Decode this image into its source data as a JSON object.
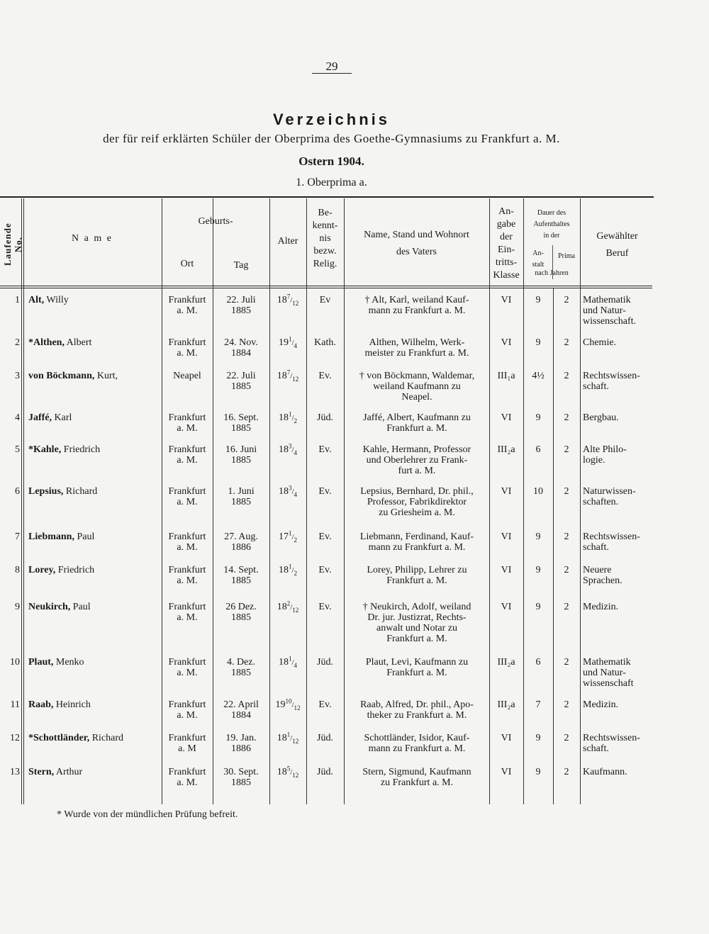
{
  "page_number": "29",
  "title": "Verzeichnis",
  "subtitle": "der für reif erklärten Schüler der Oberprima des Goethe-Gymnasiums zu Frankfurt a. M.",
  "term": "Ostern 1904.",
  "class_heading": "1. Oberprima a.",
  "headers": {
    "no": "Laufende No.",
    "name": "N a m e",
    "geburts": "Geburts-",
    "ort": "Ort",
    "tag": "Tag",
    "alter": "Alter",
    "relig_1": "Be-",
    "relig_2": "kennt-",
    "relig_3": "nis",
    "relig_4": "bezw.",
    "relig_5": "Relig.",
    "vater_1": "Name, Stand und Wohnort",
    "vater_2": "des Vaters",
    "klasse_1": "An-",
    "klasse_2": "gabe",
    "klasse_3": "der",
    "klasse_4": "Ein-",
    "klasse_5": "tritts-",
    "klasse_6": "Klasse",
    "dauer_1": "Dauer des",
    "dauer_2": "Aufenthaltes",
    "dauer_3": "in der",
    "anstalt_1": "An-",
    "anstalt_2": "stalt",
    "prima": "Prima",
    "nach_jahren": "nach Jahren",
    "beruf_1": "Gewählter",
    "beruf_2": "Beruf"
  },
  "rows": [
    {
      "no": "1",
      "surname": "Alt,",
      "first": "Willy",
      "ort": [
        "Frankfurt",
        "a. M."
      ],
      "tag": [
        "22. Juli",
        "1885"
      ],
      "alter": {
        "whole": "18",
        "num": "7",
        "den": "12"
      },
      "relig": "Ev",
      "vater": [
        "† Alt, Karl, weiland Kauf-",
        "mann zu Frankfurt a. M."
      ],
      "klasse": "VI",
      "anstalt": "9",
      "prima": "2",
      "beruf": [
        "Mathematik",
        "und Natur-",
        "wissenschaft."
      ]
    },
    {
      "no": "2",
      "surname": "*Althen,",
      "first": "Albert",
      "ort": [
        "Frankfurt",
        "a. M."
      ],
      "tag": [
        "24. Nov.",
        "1884"
      ],
      "alter": {
        "whole": "19",
        "num": "1",
        "den": "4"
      },
      "relig": "Kath.",
      "vater": [
        "Althen, Wilhelm, Werk-",
        "meister zu Frankfurt a. M."
      ],
      "klasse": "VI",
      "anstalt": "9",
      "prima": "2",
      "beruf": [
        "Chemie."
      ]
    },
    {
      "no": "3",
      "surname": "von Böckmann,",
      "first": "Kurt,",
      "ort": [
        "Neapel"
      ],
      "tag": [
        "22. Juli",
        "1885"
      ],
      "alter": {
        "whole": "18",
        "num": "7",
        "den": "12"
      },
      "relig": "Ev.",
      "vater": [
        "† von Böckmann, Waldemar,",
        "weiland Kaufmann zu",
        "Neapel."
      ],
      "klasse": "III₁a",
      "anstalt": "4½",
      "prima": "2",
      "beruf": [
        "Rechtswissen-",
        "schaft."
      ]
    },
    {
      "no": "4",
      "surname": "Jaffé,",
      "first": "Karl",
      "ort": [
        "Frankfurt",
        "a. M."
      ],
      "tag": [
        "16. Sept.",
        "1885"
      ],
      "alter": {
        "whole": "18",
        "num": "1",
        "den": "2"
      },
      "relig": "Jüd.",
      "vater": [
        "Jaffé, Albert, Kaufmann zu",
        "Frankfurt a. M."
      ],
      "klasse": "VI",
      "anstalt": "9",
      "prima": "2",
      "beruf": [
        "Bergbau."
      ]
    },
    {
      "no": "5",
      "surname": "*Kahle,",
      "first": "Friedrich",
      "ort": [
        "Frankfurt",
        "a. M."
      ],
      "tag": [
        "16. Juni",
        "1885"
      ],
      "alter": {
        "whole": "18",
        "num": "3",
        "den": "4"
      },
      "relig": "Ev.",
      "vater": [
        "Kahle, Hermann, Professor",
        "und Oberlehrer zu Frank-",
        "furt a. M."
      ],
      "klasse": "III₂a",
      "anstalt": "6",
      "prima": "2",
      "beruf": [
        "Alte Philo-",
        "logie."
      ]
    },
    {
      "no": "6",
      "surname": "Lepsius,",
      "first": "Richard",
      "ort": [
        "Frankfurt",
        "a. M."
      ],
      "tag": [
        "1. Juni",
        "1885"
      ],
      "alter": {
        "whole": "18",
        "num": "3",
        "den": "4"
      },
      "relig": "Ev.",
      "vater": [
        "Lepsius, Bernhard, Dr. phil.,",
        "Professor, Fabrikdirektor",
        "zu Griesheim a. M."
      ],
      "klasse": "VI",
      "anstalt": "10",
      "prima": "2",
      "beruf": [
        "Naturwissen-",
        "schaften."
      ]
    },
    {
      "no": "7",
      "surname": "Liebmann,",
      "first": "Paul",
      "ort": [
        "Frankfurt",
        "a. M."
      ],
      "tag": [
        "27. Aug.",
        "1886"
      ],
      "alter": {
        "whole": "17",
        "num": "1",
        "den": "2"
      },
      "relig": "Ev.",
      "vater": [
        "Liebmann, Ferdinand, Kauf-",
        "mann zu Frankfurt a. M."
      ],
      "klasse": "VI",
      "anstalt": "9",
      "prima": "2",
      "beruf": [
        "Rechtswissen-",
        "schaft."
      ]
    },
    {
      "no": "8",
      "surname": "Lorey,",
      "first": "Friedrich",
      "ort": [
        "Frankfurt",
        "a. M."
      ],
      "tag": [
        "14. Sept.",
        "1885"
      ],
      "alter": {
        "whole": "18",
        "num": "1",
        "den": "2"
      },
      "relig": "Ev.",
      "vater": [
        "Lorey, Philipp, Lehrer zu",
        "Frankfurt a. M."
      ],
      "klasse": "VI",
      "anstalt": "9",
      "prima": "2",
      "beruf": [
        "Neuere",
        "Sprachen."
      ]
    },
    {
      "no": "9",
      "surname": "Neukirch,",
      "first": "Paul",
      "ort": [
        "Frankfurt",
        "a. M."
      ],
      "tag": [
        "26 Dez.",
        "1885"
      ],
      "alter": {
        "whole": "18",
        "num": "2",
        "den": "12"
      },
      "relig": "Ev.",
      "vater": [
        "† Neukirch, Adolf, weiland",
        "Dr. jur. Justizrat, Rechts-",
        "anwalt und Notar zu",
        "Frankfurt a. M."
      ],
      "klasse": "VI",
      "anstalt": "9",
      "prima": "2",
      "beruf": [
        "Medizin."
      ]
    },
    {
      "no": "10",
      "surname": "Plaut,",
      "first": "Menko",
      "ort": [
        "Frankfurt",
        "a. M."
      ],
      "tag": [
        "4. Dez.",
        "1885"
      ],
      "alter": {
        "whole": "18",
        "num": "1",
        "den": "4"
      },
      "relig": "Jüd.",
      "vater": [
        "Plaut, Levi, Kaufmann zu",
        "Frankfurt a. M."
      ],
      "klasse": "III₂a",
      "anstalt": "6",
      "prima": "2",
      "beruf": [
        "Mathematik",
        "und Natur-",
        "wissenschaft"
      ]
    },
    {
      "no": "11",
      "surname": "Raab,",
      "first": "Heinrich",
      "ort": [
        "Frankfurt",
        "a. M."
      ],
      "tag": [
        "22. April",
        "1884"
      ],
      "alter": {
        "whole": "19",
        "num": "10",
        "den": "12"
      },
      "relig": "Ev.",
      "vater": [
        "Raab, Alfred, Dr. phil., Apo-",
        "theker zu Frankfurt a. M."
      ],
      "klasse": "III₂a",
      "anstalt": "7",
      "prima": "2",
      "beruf": [
        "Medizin."
      ]
    },
    {
      "no": "12",
      "surname": "*Schottländer,",
      "first": "Richard",
      "ort": [
        "Frankfurt",
        "a. M"
      ],
      "tag": [
        "19. Jan.",
        "1886"
      ],
      "alter": {
        "whole": "18",
        "num": "1",
        "den": "12"
      },
      "relig": "Jüd.",
      "vater": [
        "Schottländer, Isidor, Kauf-",
        "mann zu Frankfurt a. M."
      ],
      "klasse": "VI",
      "anstalt": "9",
      "prima": "2",
      "beruf": [
        "Rechtswissen-",
        "schaft."
      ]
    },
    {
      "no": "13",
      "surname": "Stern,",
      "first": "Arthur",
      "ort": [
        "Frankfurt",
        "a. M."
      ],
      "tag": [
        "30. Sept.",
        "1885"
      ],
      "alter": {
        "whole": "18",
        "num": "5",
        "den": "12"
      },
      "relig": "Jüd.",
      "vater": [
        "Stern, Sigmund, Kaufmann",
        "zu Frankfurt a. M."
      ],
      "klasse": "VI",
      "anstalt": "9",
      "prima": "2",
      "beruf": [
        "Kaufmann."
      ]
    }
  ],
  "footnote": "* Wurde von der mündlichen Prüfung befreit."
}
